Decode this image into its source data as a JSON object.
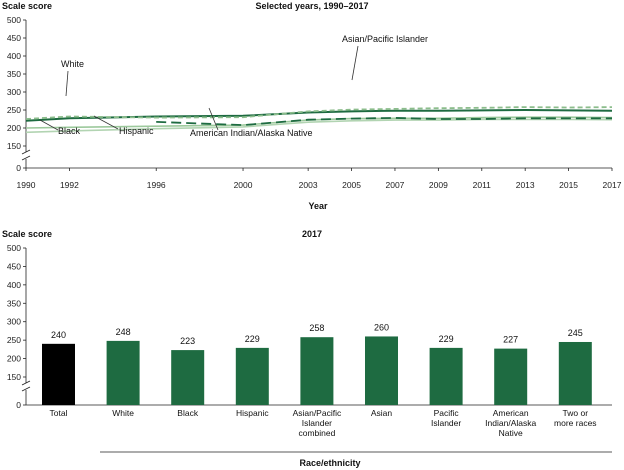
{
  "chart_data": [
    {
      "type": "line",
      "title": "Selected years, 1990–2017",
      "ylabel": "Scale score",
      "xlabel": "Year",
      "ylim": [
        0,
        500
      ],
      "yticks": [
        "0",
        "150",
        "200",
        "250",
        "300",
        "350",
        "400",
        "450",
        "500"
      ],
      "xticks": [
        "1990",
        "1992",
        "1996",
        "2000",
        "2003",
        "2005",
        "2007",
        "2009",
        "2011",
        "2013",
        "2015",
        "2017"
      ],
      "grid": false,
      "series": [
        {
          "name": "White",
          "color": "#1e6b41",
          "dash": "none",
          "width": 2,
          "x": [
            1990,
            1992,
            1996,
            2000,
            2003,
            2005,
            2007,
            2009,
            2011,
            2013,
            2015,
            2017
          ],
          "values": [
            220,
            227,
            232,
            234,
            243,
            246,
            248,
            248,
            249,
            250,
            249,
            248
          ]
        },
        {
          "name": "Asian/Pacific Islander",
          "color": "#8cbd8c",
          "dash": "5,3",
          "width": 1.8,
          "x": [
            1990,
            1992,
            1996,
            2000,
            2003,
            2005,
            2007,
            2009,
            2011,
            2013,
            2015,
            2017
          ],
          "values": [
            225,
            232,
            229,
            230,
            246,
            251,
            253,
            255,
            256,
            258,
            257,
            258
          ]
        },
        {
          "name": "Hispanic",
          "color": "#9cc99c",
          "dash": "none",
          "width": 1.6,
          "x": [
            1990,
            1992,
            1996,
            2000,
            2003,
            2005,
            2007,
            2009,
            2011,
            2013,
            2015,
            2017
          ],
          "values": [
            200,
            202,
            205,
            208,
            222,
            226,
            227,
            227,
            229,
            230,
            230,
            229
          ]
        },
        {
          "name": "Black",
          "color": "#b2d4b2",
          "dash": "none",
          "width": 1.6,
          "x": [
            1990,
            1992,
            1996,
            2000,
            2003,
            2005,
            2007,
            2009,
            2011,
            2013,
            2015,
            2017
          ],
          "values": [
            188,
            192,
            198,
            203,
            216,
            220,
            222,
            222,
            224,
            224,
            224,
            223
          ]
        },
        {
          "name": "American Indian/Alaska Native",
          "color": "#1e6b41",
          "dash": "10,5",
          "width": 1.8,
          "x": [
            1996,
            2000,
            2003,
            2005,
            2007,
            2009,
            2011,
            2013,
            2015,
            2017
          ],
          "values": [
            217,
            208,
            223,
            226,
            228,
            225,
            225,
            227,
            227,
            227
          ]
        }
      ]
    },
    {
      "type": "bar",
      "title": "2017",
      "ylabel": "Scale score",
      "xlabel": "Race/ethnicity",
      "ylim": [
        0,
        500
      ],
      "yticks": [
        "0",
        "150",
        "200",
        "250",
        "300",
        "350",
        "400",
        "450",
        "500"
      ],
      "categories": [
        [
          "Total"
        ],
        [
          "White"
        ],
        [
          "Black"
        ],
        [
          "Hispanic"
        ],
        [
          "Asian/Pacific",
          "Islander",
          "combined"
        ],
        [
          "Asian"
        ],
        [
          "Pacific",
          "Islander"
        ],
        [
          "American",
          "Indian/Alaska",
          "Native"
        ],
        [
          "Two or",
          "more races"
        ]
      ],
      "values": [
        240,
        248,
        223,
        229,
        258,
        260,
        229,
        227,
        245
      ],
      "colors": [
        "#000000",
        "#1e6b41",
        "#1e6b41",
        "#1e6b41",
        "#1e6b41",
        "#1e6b41",
        "#1e6b41",
        "#1e6b41",
        "#1e6b41"
      ]
    }
  ]
}
